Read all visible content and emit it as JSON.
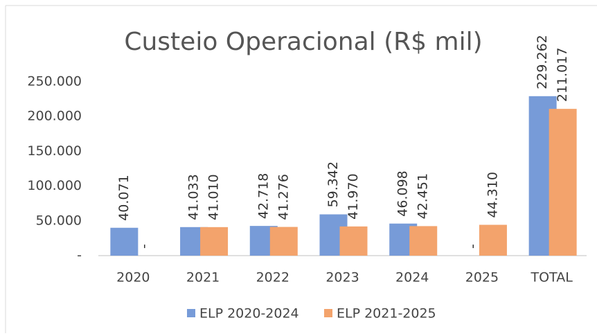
{
  "chart_data": {
    "type": "bar",
    "title": "Custeio Operacional (R$ mil)",
    "categories": [
      "2020",
      "2021",
      "2022",
      "2023",
      "2024",
      "2025",
      "TOTAL"
    ],
    "series": [
      {
        "name": "ELP 2020-2024",
        "color": "#779bd8",
        "values": [
          40071,
          41033,
          42718,
          59342,
          46098,
          0,
          229262
        ],
        "value_labels": [
          "40.071",
          "41.033",
          "42.718",
          "59.342",
          "46.098",
          "-",
          "229.262"
        ]
      },
      {
        "name": "ELP 2021-2025",
        "color": "#f3a36c",
        "values": [
          0,
          41010,
          41276,
          41970,
          42451,
          44310,
          211017
        ],
        "value_labels": [
          "-",
          "41.010",
          "41.276",
          "41.970",
          "42.451",
          "44.310",
          "211.017"
        ]
      }
    ],
    "ylim": [
      0,
      250000
    ],
    "yticks": [
      {
        "value": 0,
        "label": "-"
      },
      {
        "value": 50000,
        "label": "50.000"
      },
      {
        "value": 100000,
        "label": "100.000"
      },
      {
        "value": 150000,
        "label": "150.000"
      },
      {
        "value": 200000,
        "label": "200.000"
      },
      {
        "value": 250000,
        "label": "250.000"
      }
    ],
    "grid": false,
    "legend": "bottom"
  }
}
